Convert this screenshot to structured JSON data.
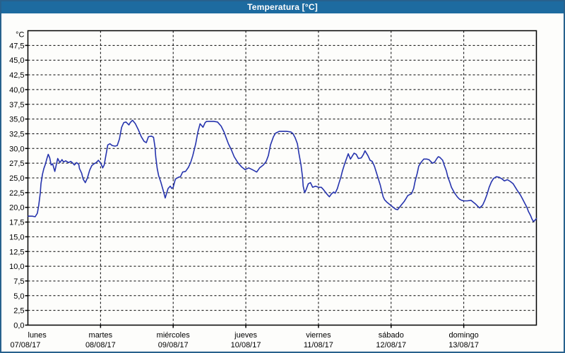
{
  "window": {
    "title": "Temperatura [°C]"
  },
  "colors": {
    "titlebar_bg": "#1d6ba0",
    "window_border": "#27618d",
    "plot_bg": "#fdfdfb",
    "plot_border": "#000000",
    "grid": "#000000",
    "line": "#2533ad",
    "label_text": "#000000",
    "title_text": "#ffffff"
  },
  "chart_data": {
    "type": "line",
    "title": "Temperatura [°C]",
    "y_axis_unit": "°C",
    "ylim": [
      0,
      50
    ],
    "y_tick_step": 2.5,
    "y_tick_labels": [
      "47,5",
      "45,0",
      "42,5",
      "40,0",
      "37,5",
      "35,0",
      "32,5",
      "30,0",
      "27,5",
      "25,0",
      "22,5",
      "20,0",
      "17,5",
      "15,0",
      "12,5",
      "10,0",
      "7,5",
      "5,0",
      "2,5",
      "0,0"
    ],
    "grid": "dashed",
    "legend": "none",
    "x_ticks": [
      {
        "day": "lunes",
        "date": "07/08/17"
      },
      {
        "day": "martes",
        "date": "08/08/17"
      },
      {
        "day": "miércoles",
        "date": "09/08/17"
      },
      {
        "day": "jueves",
        "date": "10/08/17"
      },
      {
        "day": "viernes",
        "date": "11/08/17"
      },
      {
        "day": "sábado",
        "date": "12/08/17"
      },
      {
        "day": "domingo",
        "date": "13/08/17"
      }
    ],
    "x_range_days": [
      0,
      7
    ],
    "series": [
      {
        "name": "Temperatura",
        "unit": "°C",
        "color": "#2533ad",
        "points": [
          [
            0.005,
            18.5
          ],
          [
            0.06,
            18.5
          ],
          [
            0.1,
            18.4
          ],
          [
            0.13,
            19.0
          ],
          [
            0.15,
            20.4
          ],
          [
            0.17,
            22.4
          ],
          [
            0.18,
            24.0
          ],
          [
            0.2,
            25.6
          ],
          [
            0.22,
            26.6
          ],
          [
            0.24,
            27.3
          ],
          [
            0.26,
            28.2
          ],
          [
            0.28,
            29.0
          ],
          [
            0.3,
            28.4
          ],
          [
            0.32,
            27.2
          ],
          [
            0.34,
            27.4
          ],
          [
            0.37,
            26.1
          ],
          [
            0.41,
            28.3
          ],
          [
            0.44,
            27.6
          ],
          [
            0.47,
            28.1
          ],
          [
            0.49,
            27.7
          ],
          [
            0.52,
            27.9
          ],
          [
            0.56,
            27.6
          ],
          [
            0.59,
            27.8
          ],
          [
            0.62,
            27.5
          ],
          [
            0.64,
            27.2
          ],
          [
            0.67,
            27.6
          ],
          [
            0.7,
            27.3
          ],
          [
            0.71,
            26.6
          ],
          [
            0.74,
            25.8
          ],
          [
            0.76,
            24.8
          ],
          [
            0.79,
            24.2
          ],
          [
            0.82,
            25.0
          ],
          [
            0.85,
            26.3
          ],
          [
            0.88,
            27.1
          ],
          [
            0.91,
            27.4
          ],
          [
            0.94,
            27.6
          ],
          [
            0.97,
            28.0
          ],
          [
            0.99,
            27.7
          ],
          [
            1.01,
            27.3
          ],
          [
            1.03,
            26.7
          ],
          [
            1.05,
            27.2
          ],
          [
            1.07,
            28.6
          ],
          [
            1.1,
            30.6
          ],
          [
            1.13,
            30.8
          ],
          [
            1.16,
            30.5
          ],
          [
            1.2,
            30.4
          ],
          [
            1.23,
            30.5
          ],
          [
            1.26,
            31.6
          ],
          [
            1.29,
            33.6
          ],
          [
            1.32,
            34.4
          ],
          [
            1.35,
            34.5
          ],
          [
            1.39,
            34.0
          ],
          [
            1.41,
            34.4
          ],
          [
            1.44,
            34.8
          ],
          [
            1.48,
            34.2
          ],
          [
            1.52,
            33.2
          ],
          [
            1.56,
            32.0
          ],
          [
            1.6,
            31.2
          ],
          [
            1.63,
            31.0
          ],
          [
            1.66,
            32.0
          ],
          [
            1.7,
            32.1
          ],
          [
            1.73,
            31.9
          ],
          [
            1.75,
            30.2
          ],
          [
            1.76,
            28.6
          ],
          [
            1.78,
            26.6
          ],
          [
            1.8,
            25.4
          ],
          [
            1.83,
            24.3
          ],
          [
            1.86,
            23.0
          ],
          [
            1.89,
            21.6
          ],
          [
            1.93,
            23.2
          ],
          [
            1.96,
            23.6
          ],
          [
            1.98,
            23.2
          ],
          [
            2.0,
            23.4
          ],
          [
            2.03,
            24.8
          ],
          [
            2.07,
            25.1
          ],
          [
            2.1,
            25.2
          ],
          [
            2.13,
            26.0
          ],
          [
            2.17,
            26.1
          ],
          [
            2.21,
            26.8
          ],
          [
            2.24,
            27.6
          ],
          [
            2.27,
            28.8
          ],
          [
            2.31,
            30.8
          ],
          [
            2.34,
            32.8
          ],
          [
            2.37,
            34.2
          ],
          [
            2.41,
            33.6
          ],
          [
            2.44,
            34.4
          ],
          [
            2.46,
            34.6
          ],
          [
            2.51,
            34.6
          ],
          [
            2.56,
            34.6
          ],
          [
            2.61,
            34.5
          ],
          [
            2.66,
            33.8
          ],
          [
            2.7,
            32.8
          ],
          [
            2.73,
            31.8
          ],
          [
            2.76,
            30.8
          ],
          [
            2.8,
            29.8
          ],
          [
            2.84,
            28.6
          ],
          [
            2.89,
            27.6
          ],
          [
            2.94,
            26.9
          ],
          [
            2.99,
            26.4
          ],
          [
            3.04,
            26.7
          ],
          [
            3.09,
            26.4
          ],
          [
            3.15,
            26.0
          ],
          [
            3.19,
            26.7
          ],
          [
            3.24,
            27.2
          ],
          [
            3.28,
            27.8
          ],
          [
            3.31,
            28.8
          ],
          [
            3.34,
            30.6
          ],
          [
            3.38,
            32.0
          ],
          [
            3.41,
            32.6
          ],
          [
            3.46,
            32.9
          ],
          [
            3.51,
            32.9
          ],
          [
            3.56,
            32.9
          ],
          [
            3.62,
            32.8
          ],
          [
            3.65,
            32.5
          ],
          [
            3.68,
            31.8
          ],
          [
            3.71,
            30.8
          ],
          [
            3.73,
            29.2
          ],
          [
            3.76,
            27.2
          ],
          [
            3.78,
            25.2
          ],
          [
            3.79,
            23.6
          ],
          [
            3.81,
            22.5
          ],
          [
            3.83,
            23.0
          ],
          [
            3.86,
            24.0
          ],
          [
            3.89,
            24.2
          ],
          [
            3.92,
            23.4
          ],
          [
            3.96,
            23.6
          ],
          [
            4.0,
            23.4
          ],
          [
            4.04,
            23.4
          ],
          [
            4.07,
            23.0
          ],
          [
            4.12,
            22.2
          ],
          [
            4.15,
            21.8
          ],
          [
            4.18,
            22.3
          ],
          [
            4.21,
            22.6
          ],
          [
            4.23,
            22.4
          ],
          [
            4.26,
            23.2
          ],
          [
            4.28,
            24.0
          ],
          [
            4.31,
            25.2
          ],
          [
            4.33,
            26.2
          ],
          [
            4.36,
            27.4
          ],
          [
            4.39,
            28.4
          ],
          [
            4.41,
            29.1
          ],
          [
            4.44,
            28.2
          ],
          [
            4.47,
            28.8
          ],
          [
            4.49,
            29.2
          ],
          [
            4.52,
            29.0
          ],
          [
            4.55,
            28.3
          ],
          [
            4.59,
            28.4
          ],
          [
            4.62,
            29.0
          ],
          [
            4.64,
            29.6
          ],
          [
            4.68,
            28.8
          ],
          [
            4.71,
            28.0
          ],
          [
            4.74,
            27.8
          ],
          [
            4.77,
            27.0
          ],
          [
            4.79,
            26.2
          ],
          [
            4.82,
            25.0
          ],
          [
            4.85,
            23.8
          ],
          [
            4.87,
            22.8
          ],
          [
            4.89,
            21.8
          ],
          [
            4.91,
            21.3
          ],
          [
            4.94,
            20.9
          ],
          [
            4.97,
            20.6
          ],
          [
            5.0,
            20.3
          ],
          [
            5.02,
            20.1
          ],
          [
            5.06,
            19.7
          ],
          [
            5.09,
            19.6
          ],
          [
            5.14,
            20.4
          ],
          [
            5.18,
            21.0
          ],
          [
            5.21,
            21.6
          ],
          [
            5.23,
            22.0
          ],
          [
            5.26,
            22.2
          ],
          [
            5.28,
            22.3
          ],
          [
            5.31,
            23.2
          ],
          [
            5.33,
            24.4
          ],
          [
            5.36,
            25.8
          ],
          [
            5.38,
            27.0
          ],
          [
            5.41,
            27.6
          ],
          [
            5.45,
            28.2
          ],
          [
            5.49,
            28.2
          ],
          [
            5.52,
            28.1
          ],
          [
            5.57,
            27.5
          ],
          [
            5.6,
            27.7
          ],
          [
            5.63,
            28.3
          ],
          [
            5.65,
            28.6
          ],
          [
            5.67,
            28.5
          ],
          [
            5.71,
            28.0
          ],
          [
            5.73,
            27.2
          ],
          [
            5.76,
            26.2
          ],
          [
            5.78,
            25.2
          ],
          [
            5.81,
            24.2
          ],
          [
            5.83,
            23.4
          ],
          [
            5.87,
            22.5
          ],
          [
            5.91,
            21.8
          ],
          [
            5.94,
            21.4
          ],
          [
            5.97,
            21.2
          ],
          [
            6.0,
            21.1
          ],
          [
            6.05,
            21.1
          ],
          [
            6.1,
            21.2
          ],
          [
            6.16,
            20.6
          ],
          [
            6.2,
            20.1
          ],
          [
            6.22,
            19.9
          ],
          [
            6.26,
            20.4
          ],
          [
            6.29,
            21.2
          ],
          [
            6.32,
            22.2
          ],
          [
            6.35,
            23.4
          ],
          [
            6.38,
            24.3
          ],
          [
            6.41,
            24.9
          ],
          [
            6.45,
            25.2
          ],
          [
            6.49,
            25.1
          ],
          [
            6.53,
            24.8
          ],
          [
            6.56,
            24.5
          ],
          [
            6.6,
            24.7
          ],
          [
            6.64,
            24.4
          ],
          [
            6.68,
            24.0
          ],
          [
            6.71,
            23.4
          ],
          [
            6.74,
            22.8
          ],
          [
            6.78,
            22.1
          ],
          [
            6.81,
            21.4
          ],
          [
            6.84,
            20.7
          ],
          [
            6.87,
            20.0
          ],
          [
            6.89,
            19.3
          ],
          [
            6.92,
            18.6
          ],
          [
            6.94,
            18.0
          ],
          [
            6.96,
            17.6
          ],
          [
            6.98,
            17.8
          ],
          [
            7.0,
            18.1
          ]
        ]
      }
    ]
  }
}
